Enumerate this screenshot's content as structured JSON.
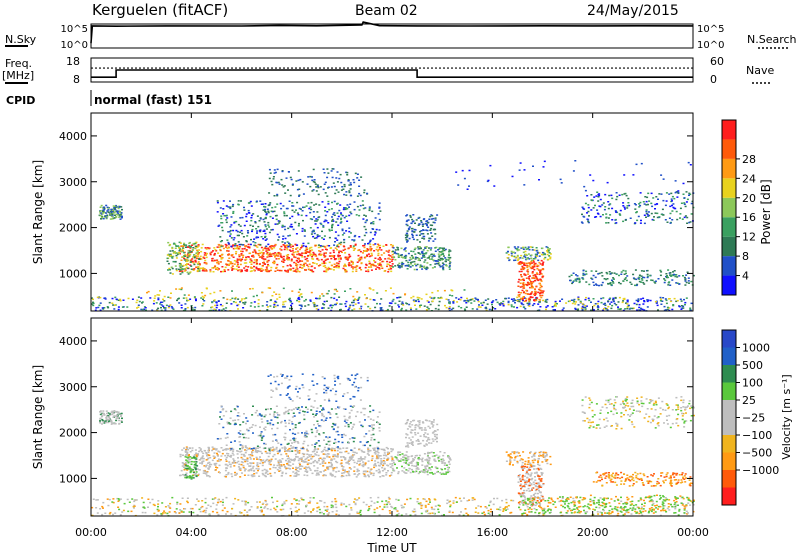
{
  "header": {
    "station": "Kerguelen (fitACF)",
    "beam": "Beam 02",
    "date": "24/May/2015"
  },
  "nsky_panel": {
    "left_label": "N.Sky",
    "left_ticks": [
      "10^5",
      "10^0"
    ],
    "right_ticks": [
      "10^5",
      "10^0"
    ],
    "right_label": "N.Search"
  },
  "freq_panel": {
    "left_label_1": "Freq.",
    "left_label_2": "[MHz]",
    "left_ticks": [
      "18",
      "8"
    ],
    "right_ticks": [
      "60",
      "0"
    ],
    "right_label": "Nave"
  },
  "cpid": {
    "label": "CPID",
    "value": "normal (fast) 151"
  },
  "x_axis": {
    "label": "Time UT",
    "ticks": [
      "00:00",
      "04:00",
      "08:00",
      "12:00",
      "16:00",
      "20:00",
      "00:00"
    ]
  },
  "colors": {
    "power_scale": [
      "#1010ff",
      "#2050c8",
      "#2e7a55",
      "#3aa060",
      "#8cc85a",
      "#e8d21e",
      "#ff9a14",
      "#ff5a0a",
      "#ff1e1e"
    ],
    "velocity_scale": [
      "#ff1e1e",
      "#ff5a0a",
      "#ff9a14",
      "#f0b41e",
      "#bebebe",
      "#bebebe",
      "#5ac83c",
      "#2e8c50",
      "#2060c8",
      "#2848c8"
    ]
  },
  "chart_data": [
    {
      "type": "line",
      "panel": "nsky",
      "x_range_hours": [
        0,
        24
      ],
      "series": [
        {
          "x": [
            0,
            0.05,
            1,
            3,
            6,
            7.5,
            9,
            10.8,
            10.85,
            11.5,
            13,
            15,
            18,
            20,
            22,
            24
          ],
          "y": [
            1,
            4.6,
            4.55,
            4.6,
            4.58,
            4.7,
            4.62,
            4.8,
            5.4,
            4.65,
            4.6,
            4.58,
            4.62,
            4.6,
            4.62,
            4.6
          ]
        }
      ],
      "ylim_log10": [
        0,
        5
      ]
    },
    {
      "type": "line",
      "panel": "frequency",
      "x_range_hours": [
        0,
        24
      ],
      "series": [
        {
          "x": [
            0,
            1,
            1,
            13,
            13,
            24
          ],
          "y": [
            10,
            10,
            13,
            13,
            10,
            10
          ]
        }
      ],
      "ylim": [
        8,
        18
      ],
      "y2lim": [
        0,
        60
      ]
    },
    {
      "type": "heatmap",
      "panel": "power",
      "ylabel": "Slant Range [km]",
      "xlabel": "Time UT",
      "xlim_hours": [
        0,
        24
      ],
      "ylim": [
        180,
        4500
      ],
      "y_ticks": [
        1000,
        2000,
        3000,
        4000
      ],
      "colorbar_label": "Power [dB]",
      "colorbar_ticks": [
        "4",
        "8",
        "12",
        "16",
        "20",
        "24",
        "28"
      ],
      "colorbar_range": [
        0,
        30
      ]
    },
    {
      "type": "heatmap",
      "panel": "velocity",
      "ylabel": "Slant Range [km]",
      "xlabel": "Time UT",
      "xlim_hours": [
        0,
        24
      ],
      "ylim": [
        180,
        4500
      ],
      "y_ticks": [
        1000,
        2000,
        3000,
        4000
      ],
      "colorbar_label": "Velocity [m s⁻¹]",
      "colorbar_ticks": [
        "1000",
        "500",
        "100",
        "25",
        "−25",
        "−100",
        "−500",
        "−1000"
      ]
    }
  ]
}
